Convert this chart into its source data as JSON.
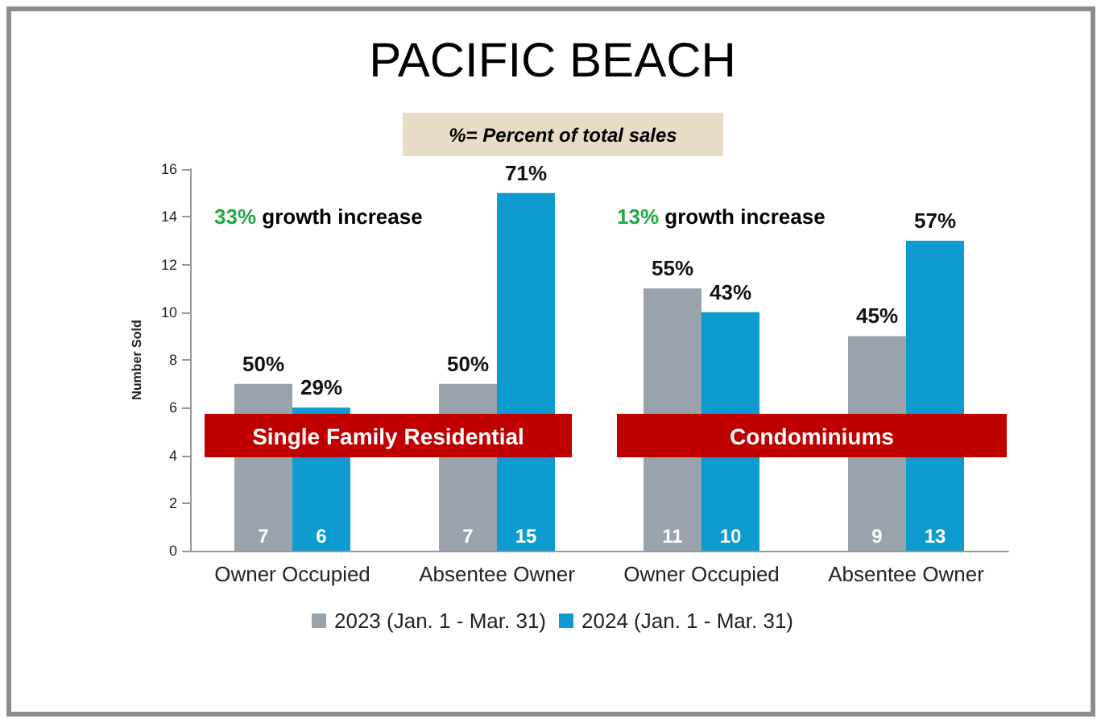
{
  "chart_data": {
    "type": "bar",
    "title": "PACIFIC BEACH",
    "ylabel": "Number Sold",
    "categories": [
      "Owner Occupied",
      "Absentee Owner",
      "Owner Occupied",
      "Absentee Owner"
    ],
    "series": [
      {
        "name": "2023 (Jan. 1 - Mar. 31)",
        "color": "#9aa3ab",
        "values": [
          7,
          7,
          11,
          9
        ]
      },
      {
        "name": "2024 (Jan. 1 - Mar. 31)",
        "color": "#0e9bd0",
        "values": [
          6,
          15,
          10,
          13
        ]
      }
    ],
    "ylim": [
      0,
      16
    ],
    "yticks": [
      0,
      2,
      4,
      6,
      8,
      10,
      12,
      14,
      16
    ],
    "grid": false,
    "legend": "bottom",
    "data_labels": true,
    "annotations": [
      "%= Percent of total sales",
      "33% growth increase",
      "13% growth increase",
      "Single Family Residential",
      "Condominiums",
      "50%",
      "29%",
      "50%",
      "71%",
      "55%",
      "43%",
      "45%",
      "57%"
    ]
  }
}
